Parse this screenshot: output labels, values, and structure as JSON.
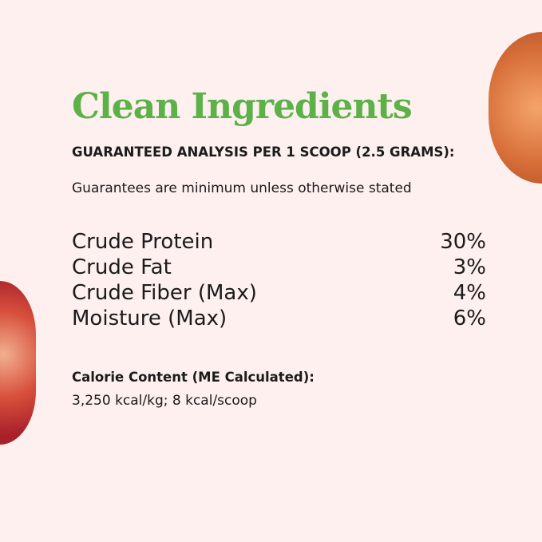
{
  "title": "Clean Ingredients",
  "subtitle": "GUARANTEED ANALYSIS PER 1 SCOOP (2.5 GRAMS):",
  "note": "Guarantees are minimum unless otherwise stated",
  "analysis": [
    {
      "label": "Crude Protein",
      "value": "30%"
    },
    {
      "label": "Crude Fat",
      "value": "3%"
    },
    {
      "label": "Crude Fiber (Max)",
      "value": "4%"
    },
    {
      "label": "Moisture (Max)",
      "value": "6%"
    }
  ],
  "calorie": {
    "label": "Calorie Content (ME Calculated):",
    "value": "3,250 kcal/kg; 8 kcal/scoop"
  },
  "colors": {
    "title": "#5cb148",
    "background": "#fdf0ee"
  }
}
